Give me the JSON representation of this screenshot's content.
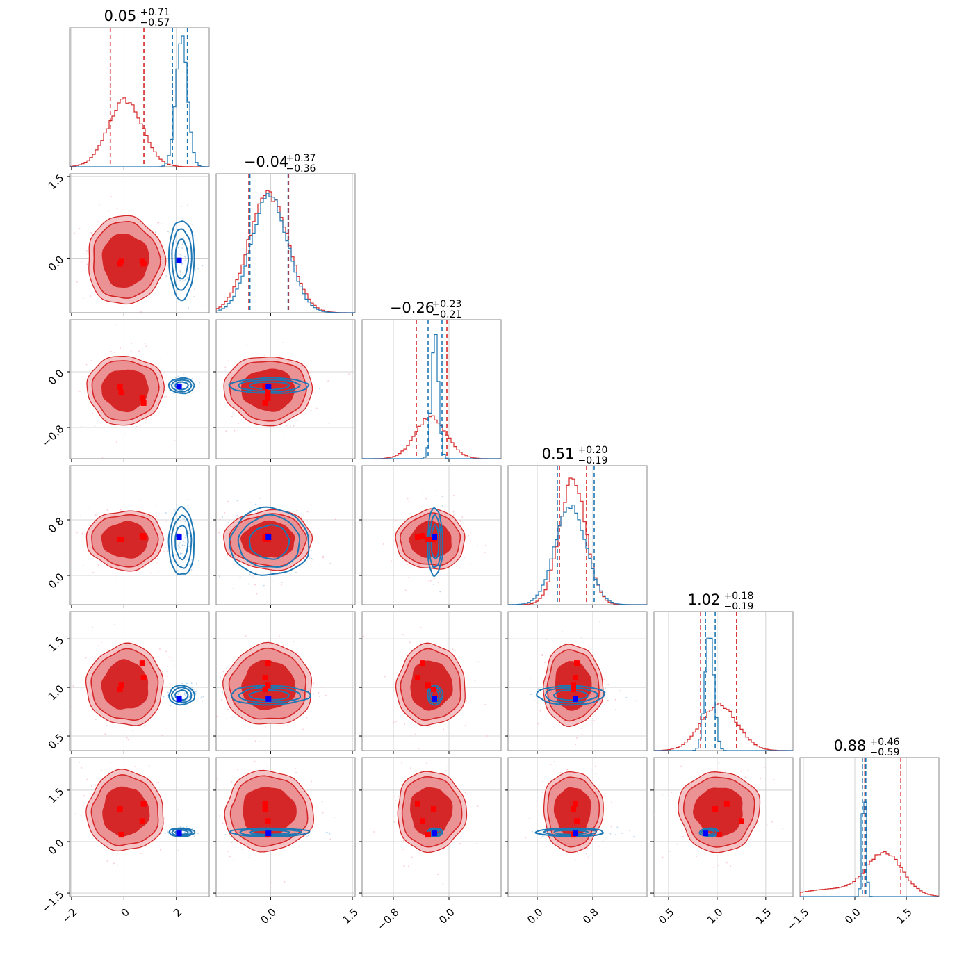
{
  "chart_data": {
    "type": "corner",
    "n_params": 6,
    "colors": {
      "red": "#d62728",
      "blue": "#1f77b4",
      "red_mid": "#eb9295",
      "red_light": "#f4c3c5",
      "truth_red": "#ff0000",
      "truth_blue": "#0000ff"
    },
    "titles": [
      {
        "main": "0.05",
        "sup": "+0.71",
        "sub": "−0.57"
      },
      {
        "main": "−0.04",
        "sup": "+0.37",
        "sub": "−0.36"
      },
      {
        "main": "−0.26",
        "sup": "+0.23",
        "sub": "−0.21"
      },
      {
        "main": "0.51",
        "sup": "+0.20",
        "sub": "−0.19"
      },
      {
        "main": "1.02",
        "sup": "+0.18",
        "sub": "−0.19"
      },
      {
        "main": "0.88",
        "sup": "+0.46",
        "sub": "−0.59"
      }
    ],
    "ranges": [
      [
        -2.05,
        3.25
      ],
      [
        -1.0,
        1.55
      ],
      [
        -1.25,
        0.75
      ],
      [
        -0.42,
        1.58
      ],
      [
        0.35,
        1.78
      ],
      [
        -1.6,
        2.45
      ]
    ],
    "ticks": [
      {
        "values": [
          -2,
          0,
          2
        ],
        "labels": [
          "−2",
          "0",
          "2"
        ]
      },
      {
        "values": [
          0.0,
          1.5
        ],
        "labels": [
          "0.0",
          "1.5"
        ],
        "row_values": [
          0.0,
          1.5
        ],
        "row_labels": [
          "0.0",
          "1.5"
        ]
      },
      {
        "values": [
          -0.8,
          0.0
        ],
        "labels": [
          "−0.8",
          "0.0"
        ]
      },
      {
        "values": [
          0.0,
          0.8
        ],
        "labels": [
          "0.0",
          "0.8"
        ]
      },
      {
        "values": [
          0.5,
          1.0,
          1.5
        ],
        "labels": [
          "0.5",
          "1.0",
          "1.5"
        ]
      },
      {
        "values": [
          -1.5,
          0.0,
          1.5
        ],
        "labels": [
          "−1.5",
          "0.0",
          "1.5"
        ]
      }
    ],
    "row_tick_overrides": {
      "1": {
        "values": [
          0.0,
          1.5
        ],
        "labels": [
          "0.0",
          "1.5"
        ]
      }
    },
    "series": [
      {
        "name": "red",
        "center": [
          0.05,
          -0.04,
          -0.26,
          0.51,
          1.02,
          0.88
        ],
        "sigma": [
          0.65,
          0.36,
          0.22,
          0.19,
          0.185,
          0.52
        ],
        "quantiles": [
          [
            -0.52,
            0.76
          ],
          [
            -0.4,
            0.33
          ],
          [
            -0.47,
            -0.03
          ],
          [
            0.32,
            0.71
          ],
          [
            0.83,
            1.2
          ],
          [
            0.29,
            1.34
          ]
        ]
      },
      {
        "name": "blue",
        "center": [
          2.2,
          -0.02,
          -0.2,
          0.48,
          0.92,
          0.27
        ],
        "sigma": [
          0.22,
          0.33,
          0.05,
          0.22,
          0.045,
          0.055
        ],
        "quantiles": [
          [
            1.85,
            2.42
          ],
          [
            -0.38,
            0.32
          ],
          [
            -0.3,
            -0.1
          ],
          [
            0.29,
            0.82
          ],
          [
            0.88,
            0.98
          ],
          [
            0.22,
            0.32
          ]
        ]
      }
    ],
    "truths": {
      "blue": [
        2.1,
        -0.04,
        -0.21,
        0.55,
        0.88,
        0.24
      ],
      "red_sets": [
        [
          -0.15,
          -0.1,
          -0.22,
          0.52,
          0.98,
          0.95
        ],
        [
          0.75,
          -0.1,
          -0.45,
          0.55,
          1.1,
          1.1
        ],
        [
          0.7,
          -0.05,
          -0.38,
          0.57,
          1.25,
          0.6
        ],
        [
          -0.1,
          -0.05,
          -0.3,
          0.52,
          1.02,
          0.2
        ]
      ]
    }
  }
}
